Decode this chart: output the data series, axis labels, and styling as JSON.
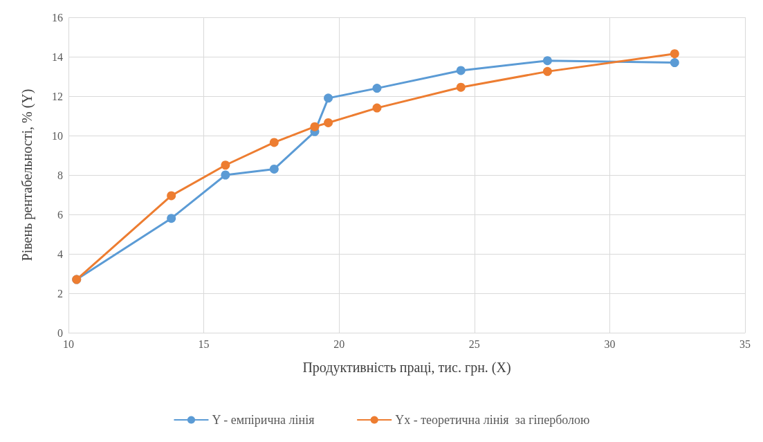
{
  "chart_data": {
    "type": "line",
    "xlabel": "Продуктивність праці, тис. грн. (X)",
    "ylabel": "Рівень рентабельності, % (Y)",
    "x": [
      10.3,
      13.8,
      15.8,
      17.6,
      19.1,
      19.6,
      21.4,
      24.5,
      27.7,
      32.4
    ],
    "series": [
      {
        "name": "Y - емпірична лінія",
        "color": "#5b9bd5",
        "values": [
          2.7,
          5.8,
          8.0,
          8.3,
          10.2,
          11.9,
          12.4,
          13.3,
          13.8,
          13.7
        ]
      },
      {
        "name": "Yx - теоретична лінія  за гіперболою",
        "color": "#ed7d31",
        "values": [
          2.7,
          6.95,
          8.5,
          9.65,
          10.45,
          10.65,
          11.4,
          12.45,
          13.25,
          14.15
        ]
      }
    ],
    "xlim": [
      10,
      35
    ],
    "xticks": [
      10,
      15,
      20,
      25,
      30,
      35
    ],
    "ylim": [
      0,
      16
    ],
    "yticks": [
      0,
      2,
      4,
      6,
      8,
      10,
      12,
      14,
      16
    ],
    "grid": true,
    "legend": "bottom",
    "marker": "circle",
    "line_style": "solid"
  }
}
